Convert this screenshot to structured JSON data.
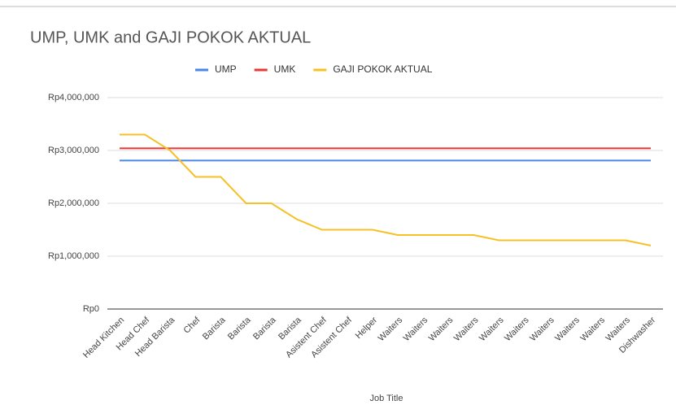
{
  "chart_data": {
    "type": "line",
    "title": "UMP, UMK and GAJI POKOK AKTUAL",
    "x_label": "Job Title",
    "categories": [
      "Head Kitchen",
      "Head Chef",
      "Head Barista",
      "Chef",
      "Barista",
      "Barista",
      "Barista",
      "Barista",
      "Asistent Chef",
      "Asistent Chef",
      "Helper",
      "Waiters",
      "Waiters",
      "Waiters",
      "Waiters",
      "Waiters",
      "Waiters",
      "Waiters",
      "Waiters",
      "Waiters",
      "Waiters",
      "Dishwasher"
    ],
    "series": [
      {
        "name": "UMP",
        "color": "#4a86e8",
        "values": [
          2810000,
          2810000,
          2810000,
          2810000,
          2810000,
          2810000,
          2810000,
          2810000,
          2810000,
          2810000,
          2810000,
          2810000,
          2810000,
          2810000,
          2810000,
          2810000,
          2810000,
          2810000,
          2810000,
          2810000,
          2810000,
          2810000
        ]
      },
      {
        "name": "UMK",
        "color": "#e53935",
        "values": [
          3040000,
          3040000,
          3040000,
          3040000,
          3040000,
          3040000,
          3040000,
          3040000,
          3040000,
          3040000,
          3040000,
          3040000,
          3040000,
          3040000,
          3040000,
          3040000,
          3040000,
          3040000,
          3040000,
          3040000,
          3040000,
          3040000
        ]
      },
      {
        "name": "GAJI POKOK AKTUAL",
        "color": "#f6c026",
        "values": [
          3300000,
          3300000,
          3000000,
          2500000,
          2500000,
          2000000,
          2000000,
          1700000,
          1500000,
          1500000,
          1500000,
          1400000,
          1400000,
          1400000,
          1400000,
          1300000,
          1300000,
          1300000,
          1300000,
          1300000,
          1300000,
          1200000
        ]
      }
    ],
    "ylim": [
      0,
      4000000
    ],
    "yticks": [
      {
        "value": 0,
        "label": "Rp0"
      },
      {
        "value": 1000000,
        "label": "Rp1,000,000"
      },
      {
        "value": 2000000,
        "label": "Rp2,000,000"
      },
      {
        "value": 3000000,
        "label": "Rp3,000,000"
      },
      {
        "value": 4000000,
        "label": "Rp4,000,000"
      }
    ],
    "grid": true,
    "legend": "top"
  }
}
